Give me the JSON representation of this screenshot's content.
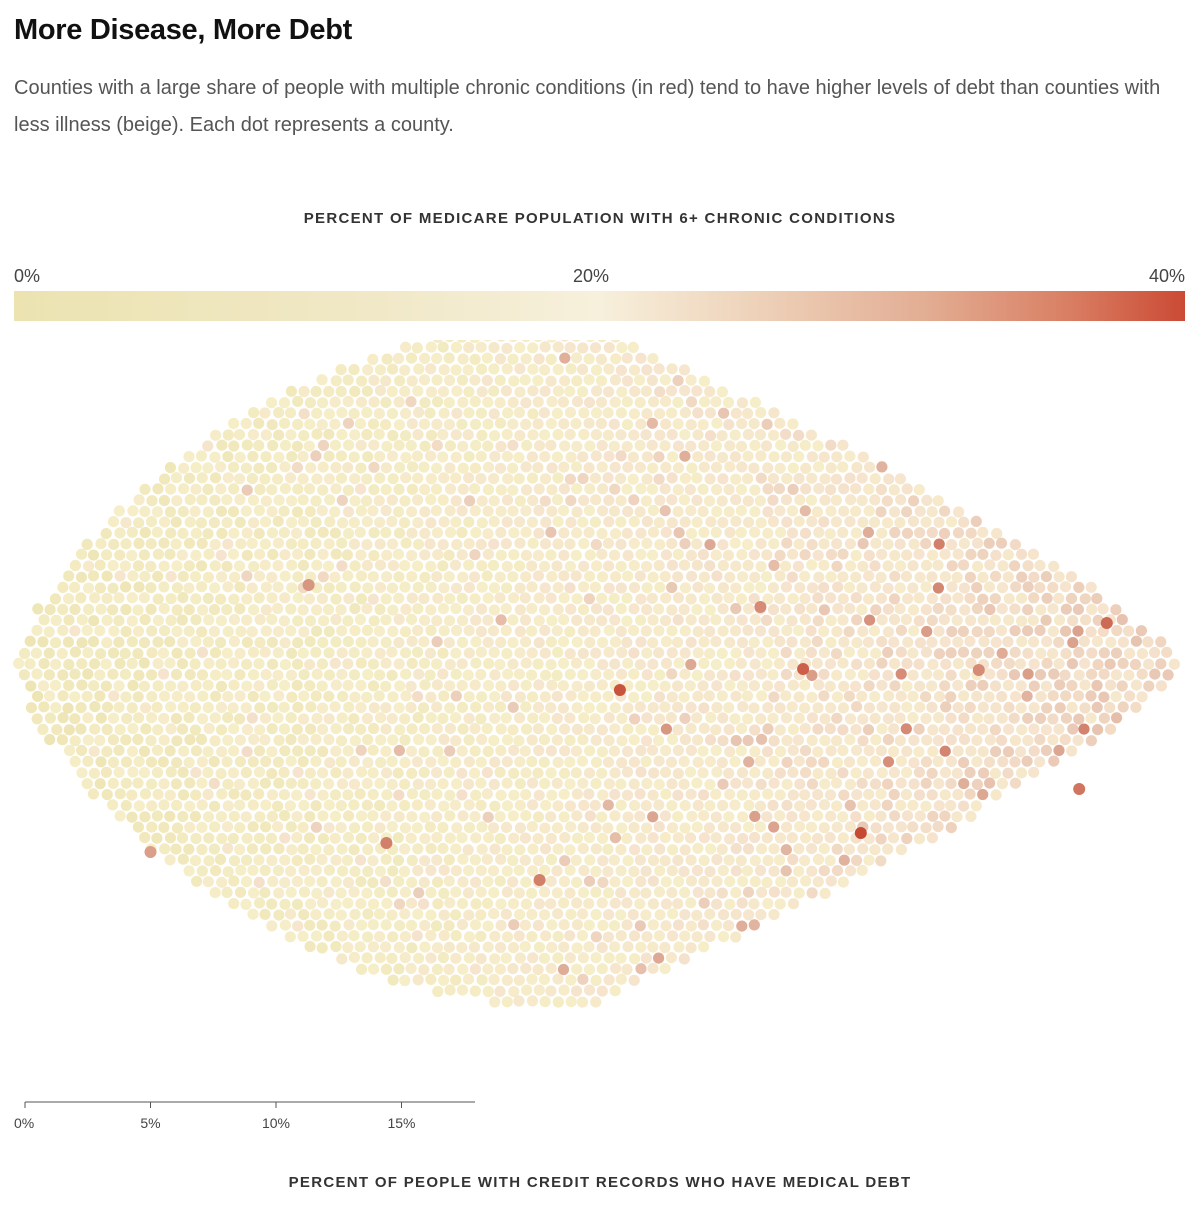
{
  "header": {
    "title": "More Disease, More Debt",
    "subtitle": "Counties with a large share of people with multiple chronic conditions (in red) tend to have higher levels of debt than counties with less illness (beige). Each dot represents a county."
  },
  "legend": {
    "title": "PERCENT OF MEDICARE POPULATION WITH 6+ CHRONIC CONDITIONS",
    "ticks": [
      "0%",
      "20%",
      "40%"
    ],
    "colors": [
      "#ece3b1",
      "#f7f0dc",
      "#efd5bd",
      "#d97f63",
      "#cb4a35"
    ]
  },
  "chart_data": {
    "type": "scatter",
    "encoding": "beeswarm",
    "x_label": "PERCENT OF PEOPLE WITH CREDIT RECORDS WHO HAVE MEDICAL DEBT",
    "x_ticks": [
      "0%",
      "5%",
      "10%",
      "15%"
    ],
    "x_tick_values": [
      0,
      5,
      10,
      15
    ],
    "color_label": "PERCENT OF MEDICARE POPULATION WITH 6+ CHRONIC CONDITIONS",
    "color_range": [
      0,
      40
    ],
    "highlighted_points": [
      {
        "x": 23.7,
        "color_pct": 38
      },
      {
        "x": 33.3,
        "color_pct": 39
      },
      {
        "x": 43.1,
        "color_pct": 36
      },
      {
        "x": 42.0,
        "color_pct": 35
      },
      {
        "x": 38.0,
        "color_pct": 33
      },
      {
        "x": 20.5,
        "color_pct": 34
      },
      {
        "x": 11.3,
        "color_pct": 32
      },
      {
        "x": 5.0,
        "color_pct": 31
      },
      {
        "x": 31.0,
        "color_pct": 37
      },
      {
        "x": 29.3,
        "color_pct": 33
      },
      {
        "x": 14.4,
        "color_pct": 34
      }
    ]
  }
}
